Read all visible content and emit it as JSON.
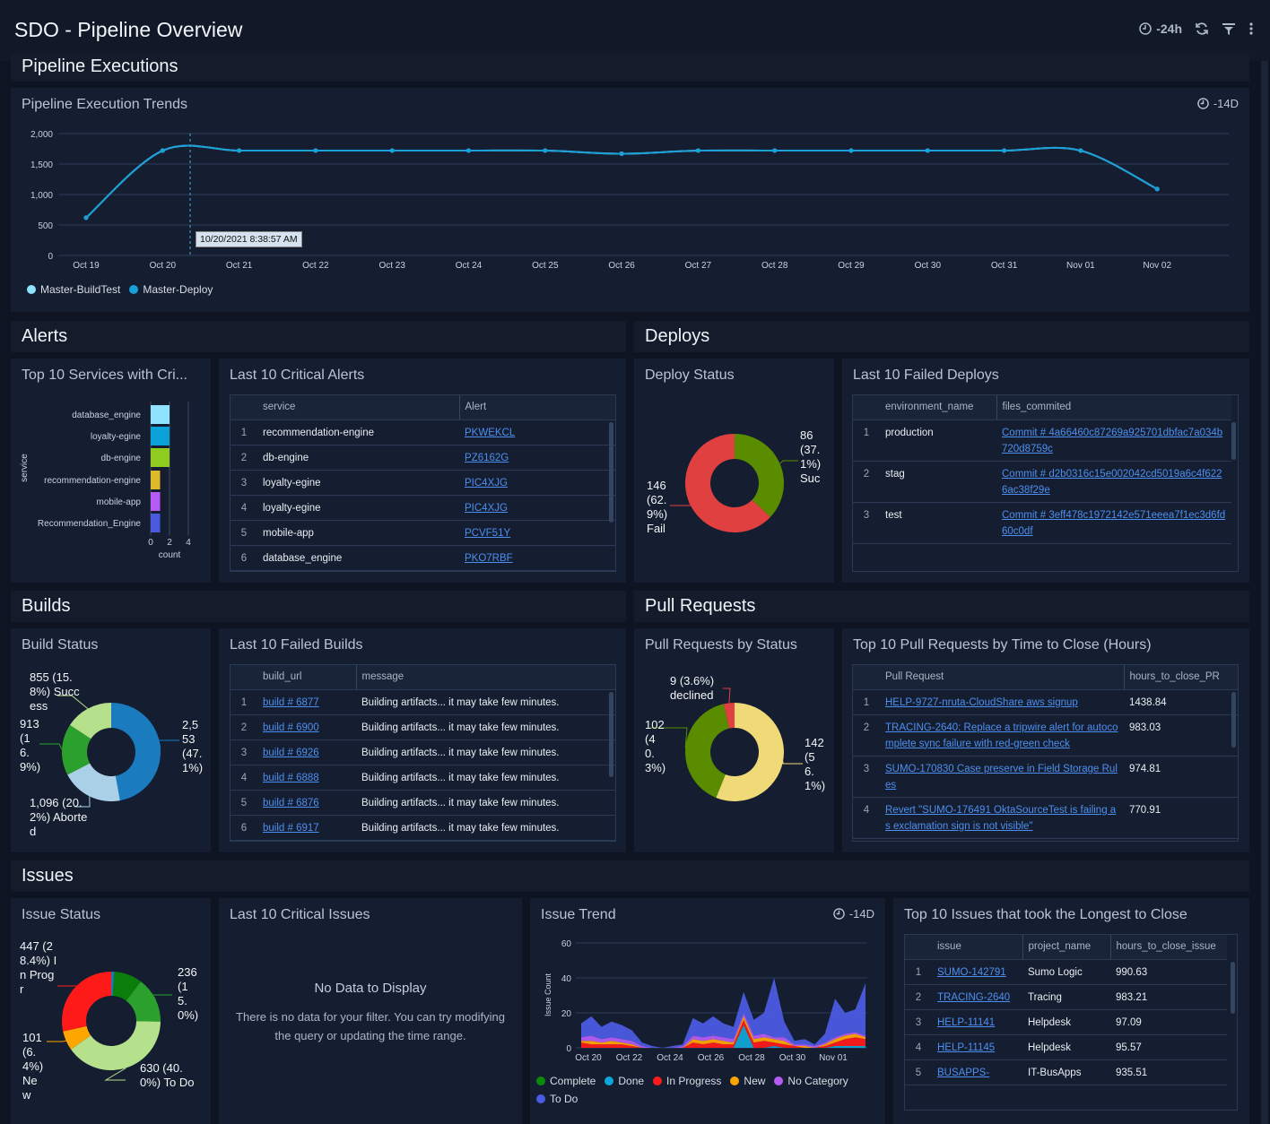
{
  "header": {
    "title": "SDO - Pipeline Overview",
    "time_range": "-24h",
    "icons": [
      "clock-icon",
      "refresh-icon",
      "filter-icon",
      "more-vertical-icon"
    ]
  },
  "sections": {
    "pipeline": "Pipeline Executions",
    "alerts": "Alerts",
    "deploys": "Deploys",
    "builds": "Builds",
    "pull_requests": "Pull Requests",
    "issues": "Issues"
  },
  "trend": {
    "title": "Pipeline Execution Trends",
    "range": "-14D",
    "tooltip": "10/20/2021 8:38:57 AM",
    "chart_data": {
      "type": "line",
      "x": [
        "Oct 19",
        "Oct 20",
        "Oct 21",
        "Oct 22",
        "Oct 23",
        "Oct 24",
        "Oct 25",
        "Oct 26",
        "Oct 27",
        "Oct 28",
        "Oct 29",
        "Oct 30",
        "Oct 31",
        "Nov 01",
        "Nov 02"
      ],
      "xticks": [
        "Oct 19",
        "Oct 20",
        "Oct 21",
        "Oct 22",
        "Oct 23",
        "Oct 24",
        "Oct 25",
        "Oct 26",
        "Oct 27",
        "Oct 28",
        "Oct 29",
        "Oct 30",
        "Oct 31",
        "Nov 01",
        "Nov 02"
      ],
      "yticks": [
        "0",
        "500",
        "1,000",
        "1,500",
        "2,000"
      ],
      "ylim": [
        0,
        2000
      ],
      "grid": true,
      "legend": "bottom-left",
      "series": [
        {
          "name": "Master-BuildTest",
          "color": "#8fe3ff",
          "values": [
            620,
            1720,
            1720,
            1720,
            1720,
            1720,
            1720,
            1670,
            1720,
            1720,
            1720,
            1720,
            1720,
            1720,
            1090
          ]
        },
        {
          "name": "Master-Deploy",
          "color": "#1aa0d8",
          "values": [
            620,
            1720,
            1720,
            1720,
            1720,
            1720,
            1720,
            1670,
            1720,
            1720,
            1720,
            1720,
            1720,
            1720,
            1090
          ]
        }
      ]
    }
  },
  "top_services": {
    "title": "Top 10 Services with Cri...",
    "chart_data": {
      "type": "bar",
      "orientation": "horizontal",
      "categories": [
        "database_engine",
        "loyalty-egine",
        "db-engine",
        "recommendation-engine",
        "mobile-app",
        "Recommendation_Engine"
      ],
      "values": [
        2,
        2,
        2,
        1,
        1,
        1
      ],
      "colors": [
        "#8fe3ff",
        "#0aa0d8",
        "#8fcc1f",
        "#e0b92a",
        "#b65cf5",
        "#4a5be0"
      ],
      "xlabel": "count",
      "ylabel": "service",
      "xticks": [
        "0",
        "2",
        "4"
      ],
      "xlim": [
        0,
        4
      ]
    }
  },
  "critical_alerts": {
    "title": "Last 10 Critical Alerts",
    "columns": [
      "service",
      "Alert"
    ],
    "rows": [
      [
        "recommendation-engine",
        "PKWEKCL"
      ],
      [
        "db-engine",
        "PZ6162G"
      ],
      [
        "loyalty-egine",
        "PIC4XJG"
      ],
      [
        "loyalty-egine",
        "PIC4XJG"
      ],
      [
        "mobile-app",
        "PCVF51Y"
      ],
      [
        "database_engine",
        "PKO7RBF"
      ]
    ]
  },
  "deploy_status": {
    "title": "Deploy Status",
    "chart_data": {
      "type": "pie",
      "donut": true,
      "slices": [
        {
          "label": "86 (37.1%) Suc",
          "value": 86,
          "color": "#5a8c00"
        },
        {
          "label": "146 (62.9%) Fail",
          "value": 146,
          "color": "#e04040"
        }
      ]
    }
  },
  "failed_deploys": {
    "title": "Last 10 Failed Deploys",
    "columns": [
      "environment_name",
      "files_commited"
    ],
    "rows": [
      [
        "production",
        "Commit # 4a66460c87269a925701dbfac7a034b720d8759c"
      ],
      [
        "stag",
        "Commit # d2b0316c15e002042cd5019a6c4f6226ac38f29e"
      ],
      [
        "test",
        "Commit # 3eff478c1972142e571eeea7f1ec3d6fd60c0df"
      ]
    ]
  },
  "build_status": {
    "title": "Build Status",
    "chart_data": {
      "type": "pie",
      "donut": true,
      "slices": [
        {
          "label": "2,553 (47.1%)",
          "value": 2553,
          "color": "#1a7bbf"
        },
        {
          "label": "1,096 (20.2%) Aborted",
          "value": 1096,
          "color": "#a9d0e6"
        },
        {
          "label": "913 (16.9%)",
          "value": 913,
          "color": "#2ca02c"
        },
        {
          "label": "855 (15.8%) Success",
          "value": 855,
          "color": "#b5e08c"
        }
      ]
    }
  },
  "failed_builds": {
    "title": "Last 10 Failed Builds",
    "columns": [
      "build_url",
      "message"
    ],
    "rows": [
      [
        "build # 6877",
        "Building artifacts... it may take few minutes."
      ],
      [
        "build # 6900",
        "Building artifacts... it may take few minutes."
      ],
      [
        "build # 6926",
        "Building artifacts... it may take few minutes."
      ],
      [
        "build # 6888",
        "Building artifacts... it may take few minutes."
      ],
      [
        "build # 6876",
        "Building artifacts... it may take few minutes."
      ],
      [
        "build # 6917",
        "Building artifacts... it may take few minutes."
      ]
    ]
  },
  "pr_status": {
    "title": "Pull Requests by Status",
    "chart_data": {
      "type": "pie",
      "donut": true,
      "slices": [
        {
          "label": "142 (56.1%)",
          "value": 142,
          "color": "#f0da78"
        },
        {
          "label": "102 (40.3%)",
          "value": 102,
          "color": "#5a8c00"
        },
        {
          "label": "9 (3.6%) declined",
          "value": 9,
          "color": "#e04040"
        }
      ]
    }
  },
  "pr_close": {
    "title": "Top 10 Pull Requests by Time to Close (Hours)",
    "columns": [
      "Pull Request",
      "hours_to_close_PR"
    ],
    "rows": [
      [
        "HELP-9727-nruta-CloudShare aws signup",
        "1438.84"
      ],
      [
        "TRACING-2640: Replace a tripwire alert for autocomplete sync failure with red-green check",
        "983.03"
      ],
      [
        "SUMO-170830 Case preserve in Field Storage Rules",
        "974.81"
      ],
      [
        "Revert \"SUMO-176491 OktaSourceTest is failing as exclamation sign is not visible\"",
        "770.91"
      ]
    ]
  },
  "issue_status": {
    "title": "Issue Status",
    "chart_data": {
      "type": "pie",
      "donut": true,
      "slices": [
        {
          "label": "",
          "value": 16,
          "color": "#1f77b4"
        },
        {
          "label": "",
          "value": 145,
          "color": "#0a7d0a"
        },
        {
          "label": "236 (15.0%)",
          "value": 236,
          "color": "#2ca02c"
        },
        {
          "label": "630 (40.0%) To Do",
          "value": 630,
          "color": "#b5e08c"
        },
        {
          "label": "101 (6.4%) New",
          "value": 101,
          "color": "#ffa500"
        },
        {
          "label": "447 (28.4%) In Progr",
          "value": 447,
          "color": "#ff1a1a"
        }
      ]
    }
  },
  "critical_issues": {
    "title": "Last 10 Critical Issues",
    "empty_title": "No Data to Display",
    "empty_text": "There is no data for your filter. You can try modifying the query or updating the time range."
  },
  "issue_trend": {
    "title": "Issue Trend",
    "range": "-14D",
    "chart_data": {
      "type": "area",
      "stacked": true,
      "ylabel": "Issue Count",
      "ylim": [
        0,
        60
      ],
      "yticks": [
        "0",
        "20",
        "40",
        "60"
      ],
      "xticks": [
        "Oct 20",
        "Oct 22",
        "Oct 24",
        "Oct 26",
        "Oct 28",
        "Oct 30",
        "Nov 01"
      ],
      "legend": "bottom",
      "x_start": "Oct 19 18:00",
      "x_step_hours": 12,
      "series": [
        {
          "name": "Complete",
          "color": "#0a8a0a",
          "values": [
            0,
            0,
            0,
            0,
            0,
            0,
            0,
            0,
            0,
            0,
            0,
            0,
            0,
            0,
            0,
            0,
            0,
            0,
            0,
            0,
            0,
            0,
            0,
            0,
            0,
            0,
            0,
            0,
            0
          ]
        },
        {
          "name": "Done",
          "color": "#10a5d8",
          "values": [
            0,
            0,
            0,
            0,
            0,
            0,
            0,
            0,
            0,
            0,
            0,
            0,
            0,
            0,
            0,
            0,
            13,
            0,
            0,
            1,
            0,
            0,
            0,
            0,
            0,
            1,
            1,
            1,
            1
          ]
        },
        {
          "name": "In Progress",
          "color": "#ff1a1a",
          "values": [
            3,
            2,
            2,
            2,
            2,
            1,
            0,
            0,
            0,
            0,
            0,
            3,
            2,
            3,
            2,
            2,
            3,
            3,
            4,
            2,
            2,
            1,
            0,
            0,
            1,
            2,
            4,
            5,
            4
          ]
        },
        {
          "name": "New",
          "color": "#ffa500",
          "values": [
            1,
            2,
            1,
            2,
            1,
            1,
            0,
            0,
            0,
            0,
            0,
            2,
            2,
            2,
            2,
            1,
            2,
            2,
            2,
            2,
            2,
            0,
            1,
            0,
            1,
            2,
            2,
            2,
            1
          ]
        },
        {
          "name": "No Category",
          "color": "#b65cf5",
          "values": [
            2,
            3,
            2,
            2,
            2,
            2,
            1,
            0,
            0,
            0,
            1,
            2,
            2,
            2,
            2,
            2,
            2,
            2,
            2,
            1,
            2,
            1,
            1,
            1,
            1,
            1,
            1,
            1,
            1
          ]
        },
        {
          "name": "To Do",
          "color": "#4a5be0",
          "values": [
            8,
            11,
            7,
            9,
            8,
            6,
            2,
            1,
            0,
            1,
            1,
            10,
            8,
            11,
            8,
            7,
            12,
            9,
            12,
            34,
            9,
            2,
            3,
            1,
            5,
            22,
            12,
            13,
            30
          ]
        }
      ]
    }
  },
  "longest_issues": {
    "title": "Top 10 Issues that took the Longest to Close",
    "columns": [
      "issue",
      "project_name",
      "hours_to_close_issue"
    ],
    "rows": [
      [
        "SUMO-142791",
        "Sumo Logic",
        "990.63"
      ],
      [
        "TRACING-2640",
        "Tracing",
        "983.21"
      ],
      [
        "HELP-11141",
        "Helpdesk",
        "97.09"
      ],
      [
        "HELP-11145",
        "Helpdesk",
        "95.57"
      ],
      [
        "BUSAPPS-",
        "IT-BusApps",
        "935.51"
      ]
    ]
  }
}
